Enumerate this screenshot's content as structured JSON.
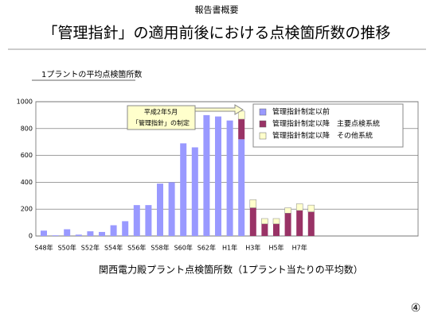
{
  "header": "報告書概要",
  "chart_data": {
    "type": "bar",
    "stacked": true,
    "title": "「管理指針」の適用前後における点検箇所数の推移",
    "y_label": "1プラントの平均点検箇所数",
    "x_label": "関西電力殿プラント点検箇所数（1プラント当たりの平均数）",
    "annotation": [
      "平成2年5月",
      "「管理指針」の制定"
    ],
    "categories": [
      "S48年",
      null,
      "S50年",
      null,
      "S52年",
      null,
      "S54年",
      null,
      "S56年",
      null,
      "S58年",
      null,
      "S60年",
      null,
      "S62年",
      null,
      "H1年",
      null,
      "H3年",
      null,
      "H5年",
      null,
      "H7年",
      null
    ],
    "series": [
      {
        "name": "管理指針制定以前",
        "color": "#9999ff",
        "values": [
          40,
          5,
          50,
          10,
          35,
          30,
          80,
          110,
          230,
          230,
          390,
          400,
          690,
          660,
          900,
          890,
          860,
          720,
          0,
          0,
          0,
          0,
          0,
          0
        ]
      },
      {
        "name": "管理指針制定以降　主要点検系統",
        "color": "#993366",
        "values": [
          0,
          0,
          0,
          0,
          0,
          0,
          0,
          0,
          0,
          0,
          0,
          0,
          0,
          0,
          0,
          0,
          0,
          150,
          210,
          90,
          90,
          170,
          190,
          180
        ]
      },
      {
        "name": "管理指針制定以降　その他系統",
        "color": "#ffffcc",
        "values": [
          0,
          0,
          0,
          0,
          0,
          0,
          0,
          0,
          0,
          0,
          0,
          0,
          0,
          0,
          0,
          0,
          0,
          60,
          60,
          40,
          40,
          40,
          50,
          50
        ]
      }
    ],
    "ylim": [
      0,
      1000
    ],
    "yticks": [
      0,
      200,
      400,
      600,
      800,
      1000
    ],
    "grid": true,
    "legend": "top-right"
  },
  "page_number": "④"
}
